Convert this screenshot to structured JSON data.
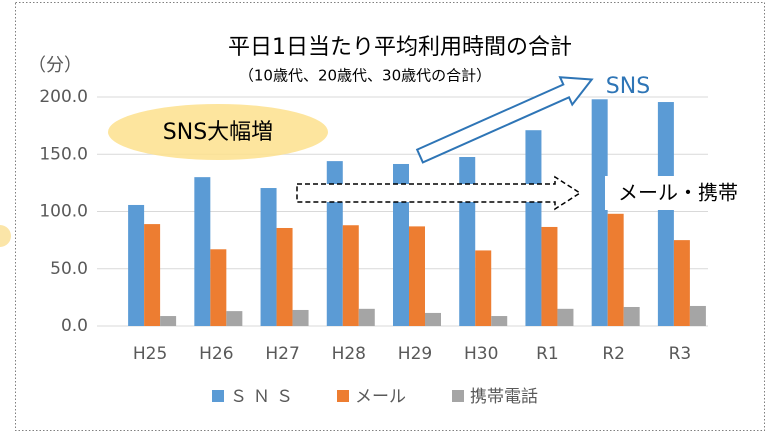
{
  "chart_data": {
    "type": "bar",
    "title": "平日1日当たり平均利用時間の合計",
    "subtitle": "（10歳代、20歳代、30歳代の合計）",
    "unit_label": "（分）",
    "annotations": [
      "SNS大幅増",
      "SNS",
      "メール・携帯"
    ],
    "categories": [
      "H25",
      "H26",
      "H27",
      "H28",
      "H29",
      "H30",
      "R1",
      "R2",
      "R3"
    ],
    "series": [
      {
        "name": "ＳＮＳ",
        "color": "#5b9bd5",
        "values": [
          105.7,
          130,
          120.5,
          144,
          141.5,
          147.6,
          171,
          198,
          195.6
        ]
      },
      {
        "name": "メール",
        "color": "#ed7d31",
        "values": [
          89,
          67,
          85.6,
          88,
          87,
          66,
          86.5,
          98,
          75
        ]
      },
      {
        "name": "携帯電話",
        "color": "#a5a5a5",
        "values": [
          8.7,
          13,
          14,
          15,
          11.4,
          8.7,
          15,
          16.6,
          17.5
        ]
      }
    ],
    "ylim": [
      0,
      200
    ],
    "yticks": [
      {
        "value": 0,
        "label": "0.0"
      },
      {
        "value": 50,
        "label": "50.0"
      },
      {
        "value": 100,
        "label": "100.0"
      },
      {
        "value": 150,
        "label": "150.0"
      },
      {
        "value": 200,
        "label": "200.0"
      }
    ],
    "grid": true,
    "legend": "bottom"
  }
}
